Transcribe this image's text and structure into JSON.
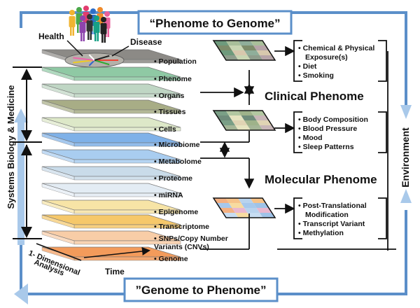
{
  "top_banner": "“Phenome to Genome”",
  "bottom_banner": "”Genome to Phenome”",
  "labels": {
    "health": "Health",
    "disease": "Disease",
    "systems_biology": "Systems Biology  &  Medicine",
    "environment": "Environment",
    "time": "Time",
    "one_dim_line1": "1- Dimensional",
    "one_dim_line2": "Analysis",
    "clinical_phenome": "Clinical Phenome",
    "molecular_phenome": "Molecular Phenome"
  },
  "layers": [
    {
      "name": "Population",
      "color": "#8c8a86"
    },
    {
      "name": "Phenome",
      "color": "#8fc9a4"
    },
    {
      "name": "Organs",
      "color": "#bfd6c4"
    },
    {
      "name": "Tissues",
      "color": "#a8ad86"
    },
    {
      "name": "Cells",
      "color": "#dde8c8"
    },
    {
      "name": "Microbiome",
      "color": "#7fb1e8"
    },
    {
      "name": "Metabolome",
      "color": "#a9cdf0"
    },
    {
      "name": "Proteome",
      "color": "#c9dbe9"
    },
    {
      "name": "miRNA",
      "color": "#e3ecf4"
    },
    {
      "name": "Epigenome",
      "color": "#f7e4a6"
    },
    {
      "name": "Transcriptome",
      "color": "#f6c86a"
    },
    {
      "name": "SNPs/Copy Number\nVariants (CNVs)",
      "color": "#f8cda7"
    },
    {
      "name": "Genome",
      "color": "#f39b5b"
    }
  ],
  "factor_groups": [
    {
      "items": [
        "Chemical & Physical",
        "Exposure(s)",
        "Diet",
        "Smoking"
      ]
    },
    {
      "items": [
        "Body Composition",
        "Blood Pressure",
        "Mood",
        "Sleep Patterns"
      ]
    },
    {
      "items": [
        "Post-Translational",
        "Modification",
        "Transcript Variant",
        "Methylation"
      ]
    }
  ],
  "colors": {
    "frame_blue": "#5b8fc9",
    "frame_arrow": "#a9c9ea",
    "banner_text": "#1a1a1a"
  }
}
